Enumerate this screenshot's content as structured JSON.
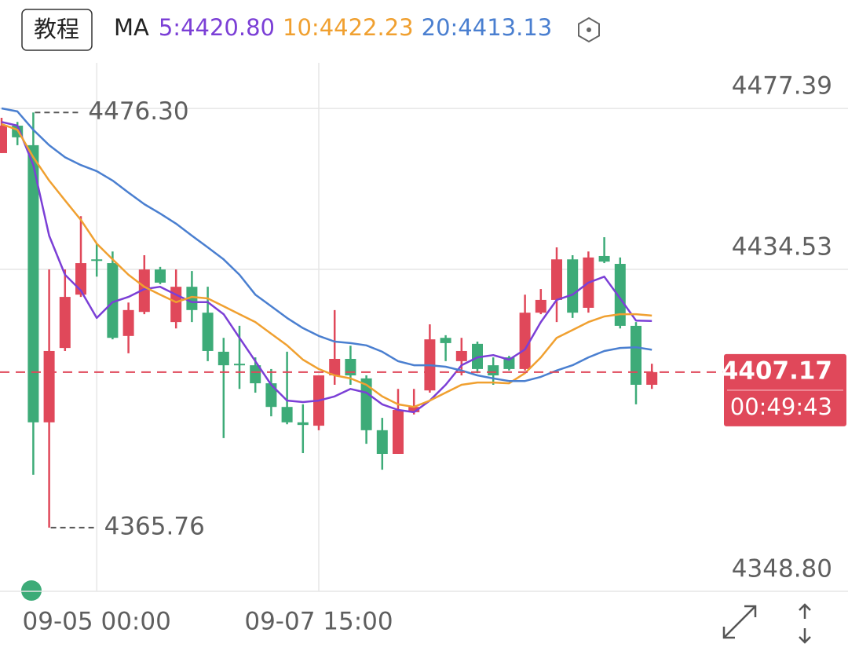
{
  "toolbar": {
    "button": "教程",
    "indicator": "MA"
  },
  "chart_data": {
    "type": "candlestick",
    "categories": [
      null,
      null,
      null,
      null,
      null,
      null,
      "09-05 00:00",
      null,
      null,
      null,
      null,
      null,
      null,
      null,
      null,
      null,
      null,
      null,
      null,
      null,
      "09-07 15:00",
      null,
      null,
      null,
      null,
      null,
      null,
      null,
      null,
      null,
      null,
      null,
      null,
      null,
      null,
      null,
      null,
      null,
      null,
      null,
      null,
      null
    ],
    "open": [
      4465.5,
      4472.8,
      4467.6,
      4393.8,
      4413.6,
      4427.8,
      4437.2,
      4436.2,
      4416.8,
      4423.2,
      4434.5,
      4420.5,
      4429.9,
      4423.0,
      4412.6,
      4409.4,
      4409.0,
      4404.2,
      4397.9,
      4393.8,
      4392.9,
      4406.3,
      4410.7,
      4405.5,
      4391.7,
      4385.4,
      4396.5,
      4402.3,
      4416.3,
      4410.1,
      4414.7,
      4409.0,
      4411.1,
      4408.0,
      4423.0,
      4426.4,
      4437.2,
      4424.3,
      4438.1,
      4436.0,
      4419.5,
      4403.8
    ],
    "high": [
      4474.9,
      4473.8,
      4476.3,
      4434.5,
      4434.5,
      4448.7,
      4441.4,
      4439.3,
      4425.7,
      4438.3,
      4435.2,
      4434.5,
      4434.1,
      4429.9,
      4416.3,
      4419.5,
      4411.1,
      4408.0,
      4412.6,
      4398.6,
      4406.3,
      4423.7,
      4414.2,
      4406.3,
      4395.0,
      4402.7,
      4402.7,
      4419.9,
      4417.0,
      4416.3,
      4415.3,
      4411.1,
      4411.5,
      4427.8,
      4429.3,
      4440.4,
      4438.3,
      4439.3,
      4443.1,
      4437.7,
      4420.5,
      4409.4
    ],
    "low": [
      4465.5,
      4467.6,
      4379.8,
      4365.76,
      4412.8,
      4427.2,
      4432.6,
      4415.9,
      4412.2,
      4422.6,
      4430.6,
      4418.8,
      4420.5,
      4410.1,
      4389.6,
      4402.7,
      4401.7,
      4395.4,
      4393.3,
      4385.6,
      4391.7,
      4403.8,
      4403.8,
      4388.1,
      4381.2,
      4385.4,
      4395.9,
      4401.7,
      4410.1,
      4406.3,
      4406.9,
      4403.8,
      4407.6,
      4407.6,
      4422.6,
      4420.5,
      4421.6,
      4423.0,
      4436.2,
      4418.8,
      4398.6,
      4402.7
    ],
    "close": [
      4472.8,
      4469.7,
      4393.8,
      4412.8,
      4427.2,
      4436.2,
      4437.0,
      4416.3,
      4423.7,
      4434.5,
      4431.0,
      4429.9,
      4423.7,
      4412.8,
      4409.0,
      4409.2,
      4404.2,
      4397.9,
      4393.8,
      4393.1,
      4406.3,
      4410.7,
      4406.3,
      4391.7,
      4385.4,
      4397.1,
      4397.9,
      4415.9,
      4414.9,
      4412.8,
      4408.0,
      4406.3,
      4408.0,
      4423.0,
      4426.4,
      4437.2,
      4423.0,
      4437.7,
      4436.6,
      4419.5,
      4403.8,
      4407.17
    ],
    "up_color": "#e0485a",
    "down_color": "#3dab78",
    "series": [
      {
        "name": "5:4420.80",
        "color": "#7b3fd6",
        "values": [
          4473.8,
          4472.8,
          4462.3,
          4443.5,
          4433.1,
          4428.9,
          4421.6,
          4425.8,
          4427.2,
          4429.3,
          4429.9,
          4427.8,
          4425.8,
          4425.8,
          4422.6,
          4416.3,
          4410.1,
          4403.8,
          4399.6,
          4399.2,
          4399.6,
          4400.7,
          4402.7,
          4401.7,
          4398.6,
          4397.1,
          4396.5,
          4399.6,
          4403.8,
          4409.0,
          4411.1,
          4411.7,
          4410.5,
          4413.2,
          4420.5,
          4426.4,
          4427.8,
          4431.0,
          4432.6,
          4426.8,
          4420.9,
          4420.8
        ]
      },
      {
        "name": "10:4422.23",
        "color": "#f0a030",
        "values": [
          4473.2,
          4471.7,
          4464.4,
          4458.2,
          4452.9,
          4447.7,
          4441.4,
          4437.2,
          4433.1,
          4429.9,
          4427.8,
          4425.8,
          4427.2,
          4426.8,
          4424.7,
          4422.6,
          4420.5,
          4417.4,
          4414.3,
          4410.5,
          4408.0,
          4406.3,
          4405.5,
          4403.8,
          4400.7,
          4398.6,
          4397.9,
          4399.6,
          4401.7,
          4403.8,
          4404.4,
          4404.4,
          4404.2,
          4406.9,
          4411.1,
          4416.3,
          4418.4,
          4420.5,
          4422.0,
          4422.6,
          4422.6,
          4422.23
        ]
      },
      {
        "name": "20:4413.13",
        "color": "#4a7fd0",
        "values": [
          4477.4,
          4476.6,
          4471.7,
          4467.6,
          4464.4,
          4462.3,
          4460.7,
          4458.2,
          4455.0,
          4451.9,
          4449.4,
          4446.7,
          4443.5,
          4440.4,
          4437.2,
          4433.1,
          4427.8,
          4424.7,
          4421.6,
          4418.9,
          4416.8,
          4415.3,
          4414.9,
          4414.3,
          4412.6,
          4410.1,
          4409.0,
          4409.0,
          4408.6,
          4407.6,
          4406.3,
          4405.5,
          4404.8,
          4404.8,
          4405.9,
          4407.6,
          4409.0,
          4411.1,
          4412.8,
          4413.6,
          4413.8,
          4413.13
        ]
      }
    ],
    "ylim": [
      4348.8,
      4486.4
    ],
    "yticks": [
      {
        "value": 4477.39,
        "label": "4477.39"
      },
      {
        "value": 4434.53,
        "label": "4434.53"
      },
      {
        "value": 4348.8,
        "label": "4348.80"
      }
    ],
    "grid": true,
    "annotations": [
      {
        "label": "4476.30",
        "value": 4476.3,
        "index": 2
      },
      {
        "label": "4365.76",
        "value": 4365.76,
        "index": 3
      }
    ],
    "last_price": {
      "value": 4407.17,
      "label": "4407.17"
    },
    "countdown": "00:49:43"
  }
}
